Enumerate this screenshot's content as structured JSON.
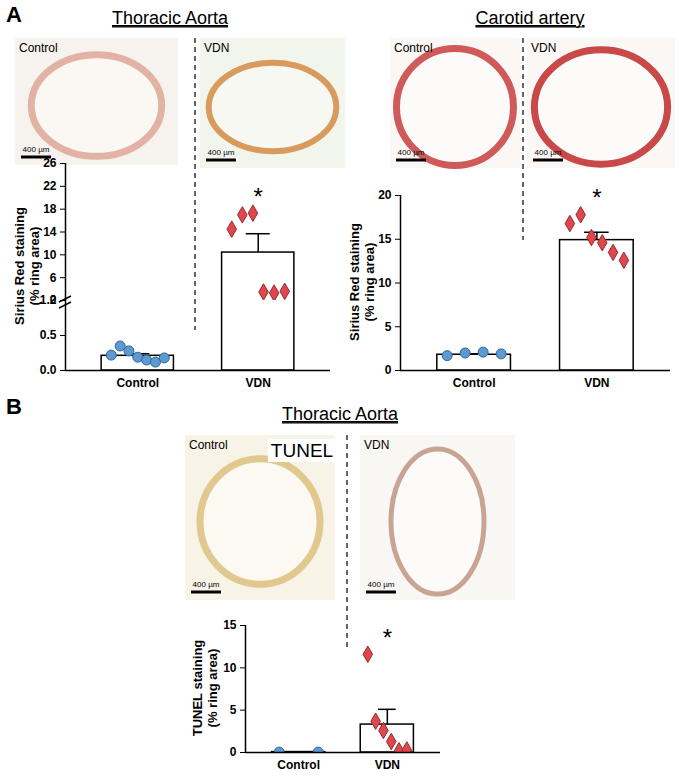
{
  "chart_data": [
    {
      "panel": "A",
      "title": "Thoracic Aorta",
      "type": "bar",
      "images": [
        {
          "label": "Control",
          "scale_bar": "400 µm"
        },
        {
          "label": "VDN",
          "scale_bar": "400 µm"
        }
      ],
      "categories": [
        "Control",
        "VDN"
      ],
      "values": [
        0.21,
        10.4
      ],
      "errors": [
        0.03,
        3.3
      ],
      "points": [
        {
          "color": "#5b9bd5",
          "marker": "circle",
          "values": [
            0.22,
            0.35,
            0.28,
            0.19,
            0.15,
            0.12,
            0.18
          ]
        },
        {
          "color": "#e0474c",
          "marker": "diamond",
          "values": [
            14.5,
            17.0,
            17.3,
            3.5,
            3.3,
            3.6
          ]
        }
      ],
      "significance": [
        null,
        "*"
      ],
      "ylabel": "Sirius Red staining\n(% ring area)",
      "ylim": [
        0,
        26
      ],
      "axis_break": [
        1.0,
        2
      ],
      "yticks": [
        {
          "value": 0,
          "label": "0.0"
        },
        {
          "value": 0.5,
          "label": "0.5"
        },
        {
          "value": 1.0,
          "label": "1.0"
        },
        2,
        6,
        10,
        14,
        18,
        22,
        26
      ]
    },
    {
      "title": "Carotid artery",
      "type": "bar",
      "images": [
        {
          "label": "Control",
          "scale_bar": "400 µm"
        },
        {
          "label": "VDN",
          "scale_bar": "400 µm"
        }
      ],
      "categories": [
        "Control",
        "VDN"
      ],
      "values": [
        1.8,
        14.9
      ],
      "errors": [
        0.1,
        0.9
      ],
      "points": [
        {
          "color": "#5b9bd5",
          "marker": "circle",
          "values": [
            1.7,
            2.0,
            2.1,
            1.9
          ]
        },
        {
          "color": "#e0474c",
          "marker": "diamond",
          "values": [
            16.8,
            17.8,
            15.2,
            14.6,
            13.5,
            12.6
          ]
        }
      ],
      "significance": [
        null,
        "*"
      ],
      "ylabel": "Sirius Red staining\n(% ring area)",
      "ylim": [
        0,
        20
      ],
      "yticks": [
        0,
        5,
        10,
        15,
        20
      ]
    },
    {
      "panel": "B",
      "title": "Thoracic Aorta",
      "type": "bar",
      "images_title": "TUNEL",
      "images": [
        {
          "label": "Control",
          "scale_bar": "400 µm"
        },
        {
          "label": "VDN",
          "scale_bar": "400 µm"
        }
      ],
      "categories": [
        "Control",
        "VDN"
      ],
      "values": [
        0.05,
        3.3
      ],
      "errors": [
        0.02,
        1.8
      ],
      "points": [
        {
          "color": "#5b9bd5",
          "marker": "circle",
          "values": [
            0.05,
            0.05
          ]
        },
        {
          "color": "#e0474c",
          "marker": "diamond",
          "values": [
            11.6,
            3.7,
            2.6,
            1.3,
            0.2,
            0.3
          ]
        }
      ],
      "significance": [
        null,
        "*"
      ],
      "ylabel": "TUNEL staining\n(% ring area)",
      "ylim": [
        0,
        15
      ],
      "yticks": [
        0,
        5,
        10,
        15
      ]
    }
  ]
}
